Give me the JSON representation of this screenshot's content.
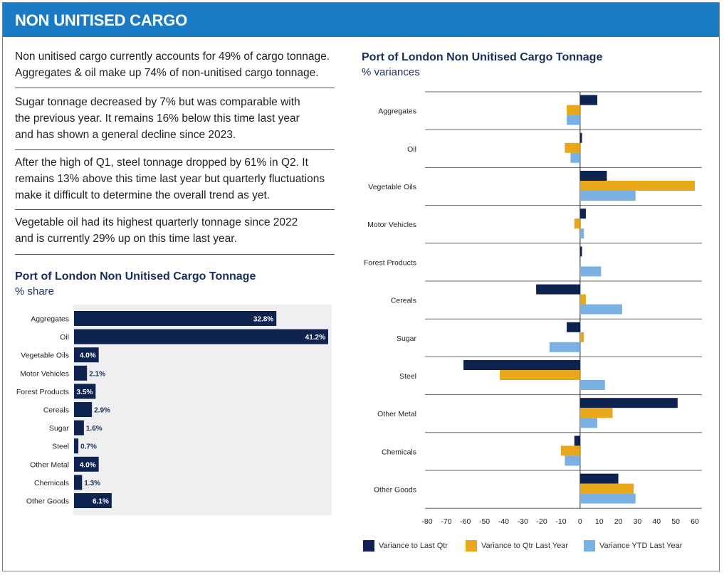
{
  "header": {
    "title": "NON UNITISED CARGO"
  },
  "text": {
    "p1": [
      "Non unitised cargo currently accounts for 49% of cargo tonnage.",
      "Aggregates & oil make up 74% of non-unitised cargo tonnage."
    ],
    "p2": [
      "Sugar tonnage decreased by 7% but was comparable with",
      "the previous year.  It remains 16% below this time last year",
      "and has shown a general decline since 2023."
    ],
    "p3": [
      "After the high of Q1, steel tonnage dropped by 61% in Q2.  It",
      "remains 13% above this time last year but quarterly fluctuations",
      "make it difficult to determine the overall trend as yet."
    ],
    "p4": [
      "Vegetable oil had its highest quarterly tonnage since 2022",
      "and is currently 29% up on this time last year."
    ]
  },
  "colors": {
    "header": "#1a7bc4",
    "navy": "#0e2350",
    "gold": "#e8a81a",
    "light_blue": "#7ab1e2",
    "panel_bg": "#efeff1"
  },
  "chart_data": [
    {
      "type": "bar",
      "orientation": "horizontal",
      "title": "Port of London Non Unitised Cargo Tonnage",
      "subtitle": "% share",
      "categories": [
        "Aggregates",
        "Oil",
        "Vegetable Oils",
        "Motor Vehicles",
        "Forest Products",
        "Cereals",
        "Sugar",
        "Steel",
        "Other Metal",
        "Chemicals",
        "Other Goods"
      ],
      "values": [
        32.8,
        41.2,
        4.0,
        2.1,
        3.5,
        2.9,
        1.6,
        0.7,
        4.0,
        1.3,
        6.1
      ],
      "labels": [
        "32.8%",
        "41.2%",
        "4.0%",
        "2.1%",
        "3.5%",
        "2.9%",
        "1.6%",
        "0.7%",
        "4.0%",
        "1.3%",
        "6.1%"
      ],
      "xlim": [
        0,
        41.2
      ],
      "grid": false,
      "color": "#0e2350"
    },
    {
      "type": "bar",
      "orientation": "horizontal",
      "title": "Port of London Non Unitised Cargo Tonnage",
      "subtitle": "% variances",
      "categories": [
        "Aggregates",
        "Oil",
        "Vegetable Oils",
        "Motor Vehicles",
        "Forest Products",
        "Cereals",
        "Sugar",
        "Steel",
        "Other Metal",
        "Chemicals",
        "Other Goods"
      ],
      "series": [
        {
          "name": "Variance to Last Qtr",
          "color": "#0e2350",
          "values": [
            9,
            1,
            14,
            3,
            1,
            -23,
            -7,
            -61,
            51,
            -3,
            20
          ]
        },
        {
          "name": "Variance to Qtr Last Year",
          "color": "#e8a81a",
          "values": [
            -7,
            -8,
            60,
            -3,
            0,
            3,
            2,
            -42,
            17,
            -10,
            28
          ]
        },
        {
          "name": "Variance YTD Last Year",
          "color": "#7ab1e2",
          "values": [
            -7,
            -5,
            29,
            2,
            11,
            22,
            -16,
            13,
            9,
            -8,
            29
          ]
        }
      ],
      "xlim": [
        -80,
        60
      ],
      "xticks": [
        -80,
        -70,
        -60,
        -50,
        -40,
        -30,
        -20,
        -10,
        0,
        10,
        20,
        30,
        40,
        50,
        60
      ],
      "grid": "horizontal separators",
      "legend": "bottom"
    }
  ]
}
